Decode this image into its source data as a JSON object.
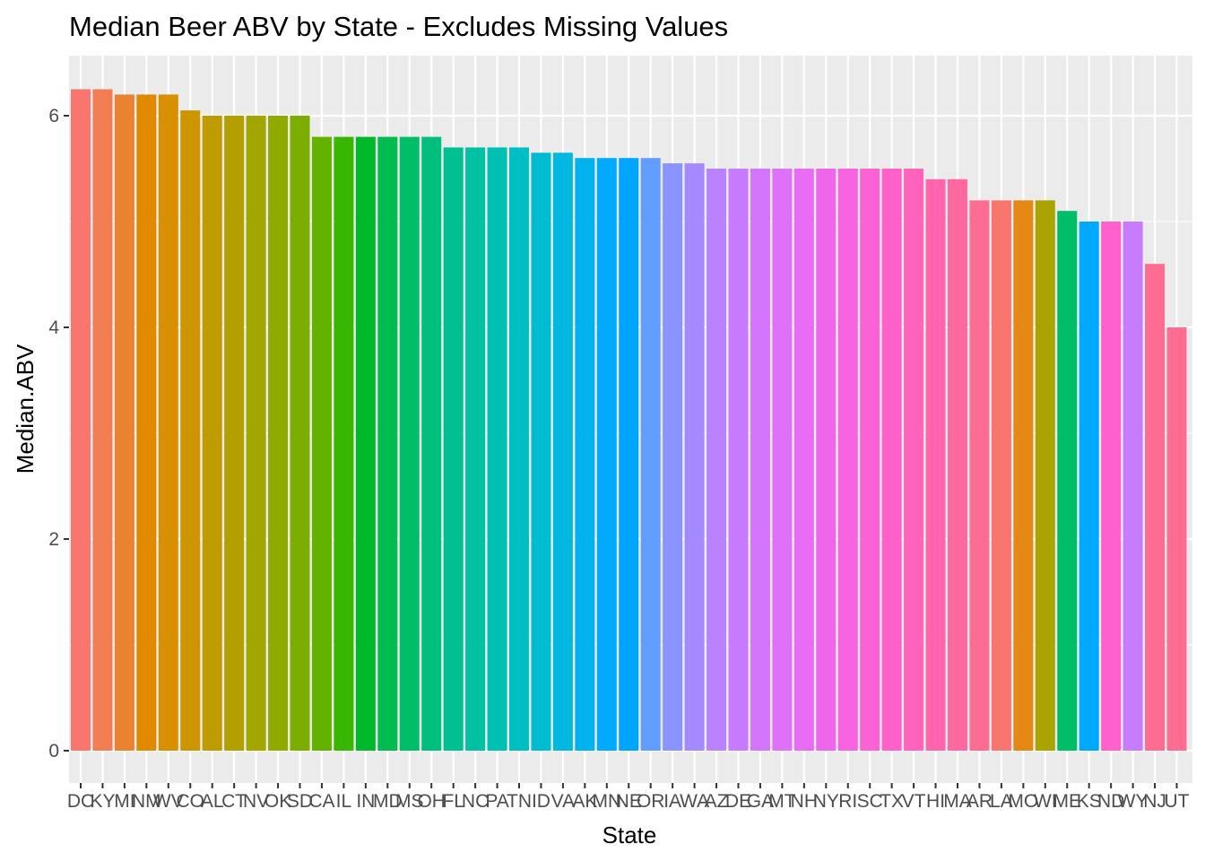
{
  "chart_data": {
    "type": "bar",
    "title": "Median Beer ABV by State - Excludes Missing Values",
    "xlabel": "State",
    "ylabel": "Median.ABV",
    "ylim": [
      0,
      6.3
    ],
    "yticks": [
      0,
      2,
      4,
      6
    ],
    "grid": true,
    "legend": "none",
    "panel_background": "#EBEBEB",
    "categories": [
      "DC",
      "KY",
      "MI",
      "NM",
      "WV",
      "CO",
      "AL",
      "CT",
      "NV",
      "OK",
      "SD",
      "CA",
      "IL",
      "IN",
      "MD",
      "MS",
      "OH",
      "FL",
      "NC",
      "PA",
      "TN",
      "ID",
      "VA",
      "AK",
      "MN",
      "NE",
      "OR",
      "IA",
      "WA",
      "AZ",
      "DE",
      "GA",
      "MT",
      "NH",
      "NY",
      "RI",
      "SC",
      "TX",
      "VT",
      "HI",
      "MA",
      "AR",
      "LA",
      "MO",
      "WI",
      "ME",
      "KS",
      "ND",
      "WY",
      "NJ",
      "UT"
    ],
    "values": [
      6.25,
      6.25,
      6.2,
      6.2,
      6.2,
      6.05,
      6.0,
      6.0,
      6.0,
      6.0,
      6.0,
      5.8,
      5.8,
      5.8,
      5.8,
      5.8,
      5.8,
      5.7,
      5.7,
      5.7,
      5.7,
      5.65,
      5.65,
      5.6,
      5.6,
      5.6,
      5.6,
      5.55,
      5.55,
      5.5,
      5.5,
      5.5,
      5.5,
      5.5,
      5.5,
      5.5,
      5.5,
      5.5,
      5.5,
      5.4,
      5.4,
      5.2,
      5.2,
      5.2,
      5.2,
      5.1,
      5.0,
      5.0,
      5.0,
      4.6,
      4.0
    ],
    "colors": [
      "#F8766D",
      "#F27D53",
      "#EA8331",
      "#E18A00",
      "#D89000",
      "#CD9600",
      "#C09B00",
      "#B3A000",
      "#A3A500",
      "#91AA00",
      "#7CAE00",
      "#64B200",
      "#39B600",
      "#00B92A",
      "#00BB4E",
      "#00BE67",
      "#00BF7D",
      "#00C091",
      "#00C1A3",
      "#00C0B4",
      "#00BFC4",
      "#00BCD3",
      "#00B8E1",
      "#00B2EE",
      "#00ABFD",
      "#00A5FF",
      "#619CFF",
      "#8B93FF",
      "#A58AFF",
      "#B983FF",
      "#C77CFF",
      "#D376FE",
      "#DF70F8",
      "#E76BF3",
      "#F066EA",
      "#F763E0",
      "#FC61D5",
      "#FF61C9",
      "#FF63BB",
      "#FF64AD",
      "#FF689F",
      "#FF6C91",
      "#F8766D",
      "#E68613",
      "#ABA300",
      "#00BE67",
      "#00A9FF",
      "#FF61CC",
      "#C77CFF",
      "#FF6C91",
      "#FF6C91"
    ]
  }
}
